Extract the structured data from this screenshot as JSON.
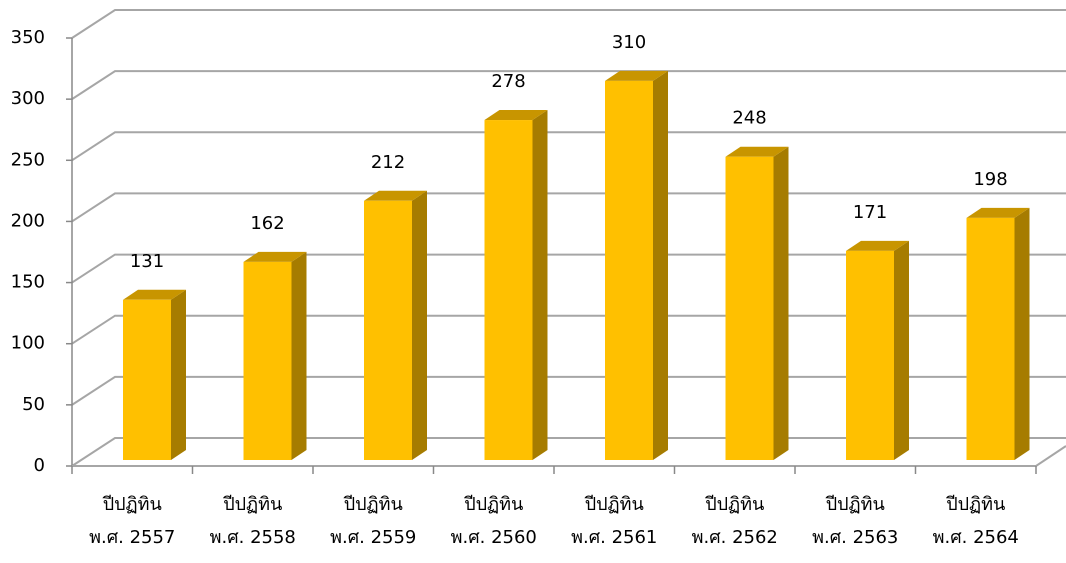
{
  "chart_data": {
    "type": "bar3d",
    "categories": [
      "ปีปฏิทิน\nพ.ศ. 2557",
      "ปีปฏิทิน\nพ.ศ. 2558",
      "ปีปฏิทิน\nพ.ศ. 2559",
      "ปีปฏิทิน\nพ.ศ. 2560",
      "ปีปฏิทิน\nพ.ศ. 2561",
      "ปีปฏิทิน\nพ.ศ. 2562",
      "ปีปฏิทิน\nพ.ศ. 2563",
      "ปีปฏิทิน\nพ.ศ. 2564"
    ],
    "values": [
      131,
      162,
      212,
      278,
      310,
      248,
      171,
      198
    ],
    "color": "#ffc000",
    "ylim": [
      0,
      350
    ],
    "yticks": [
      0,
      50,
      100,
      150,
      200,
      250,
      300,
      350
    ],
    "grid": true
  }
}
